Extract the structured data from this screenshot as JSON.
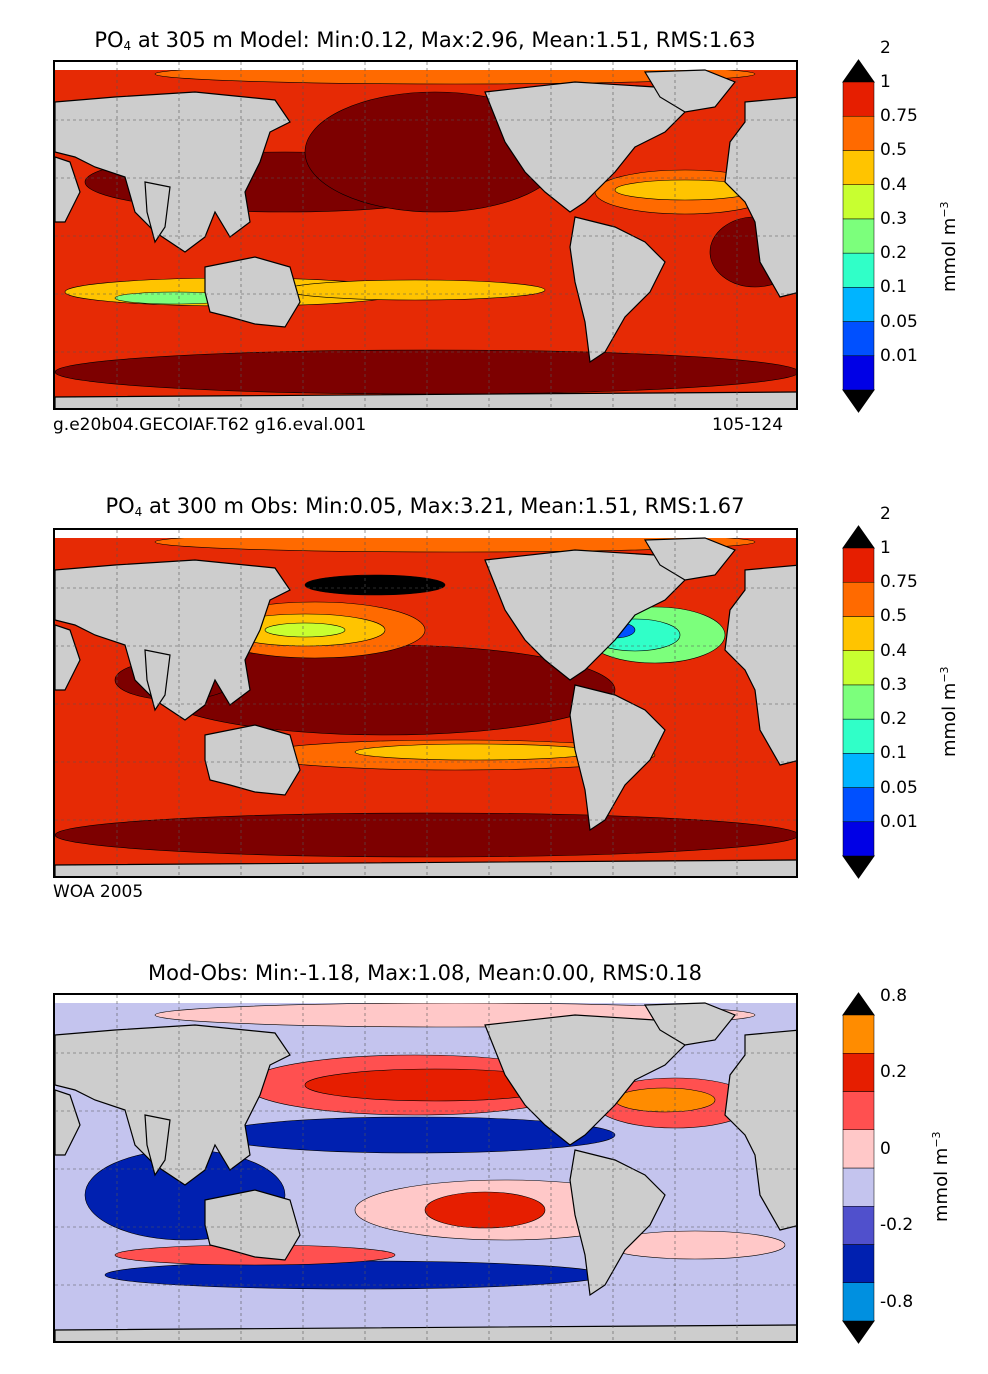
{
  "panels": [
    {
      "title": {
        "var": "PO",
        "sub": "4",
        "rest": " at 305 m Model: Min:0.12, Max:2.96, Mean:1.51, RMS:1.63"
      },
      "note_left": "g.e20b04.GECOIAF.T62 g16.eval.001",
      "note_right": "105-124",
      "ocean_color": "#e62a05",
      "colorbar": {
        "ticks": [
          "0.01",
          "0.05",
          "0.1",
          "0.2",
          "0.3",
          "0.4",
          "0.5",
          "0.75",
          "1",
          "2"
        ],
        "colors": [
          "#000080",
          "#0000e6",
          "#0050ff",
          "#00b4ff",
          "#30ffc8",
          "#7cff7c",
          "#c8ff30",
          "#ffc400",
          "#ff6a00",
          "#e61e00",
          "#7d0000"
        ],
        "unit": "mmol m",
        "unit_exp": "−3"
      },
      "map_stats": {
        "min": 0.12,
        "max": 2.96,
        "mean": 1.51,
        "rms": 1.63
      }
    },
    {
      "title": {
        "var": "PO",
        "sub": "4",
        "rest": " at 300 m Obs: Min:0.05, Max:3.21, Mean:1.51, RMS:1.67"
      },
      "note_left": "WOA 2005",
      "note_right": "",
      "ocean_color": "#e62a05",
      "colorbar": {
        "ticks": [
          "0.01",
          "0.05",
          "0.1",
          "0.2",
          "0.3",
          "0.4",
          "0.5",
          "0.75",
          "1",
          "2"
        ],
        "colors": [
          "#000080",
          "#0000e6",
          "#0050ff",
          "#00b4ff",
          "#30ffc8",
          "#7cff7c",
          "#c8ff30",
          "#ffc400",
          "#ff6a00",
          "#e61e00",
          "#7d0000"
        ],
        "unit": "mmol m",
        "unit_exp": "−3"
      },
      "map_stats": {
        "min": 0.05,
        "max": 3.21,
        "mean": 1.51,
        "rms": 1.67
      }
    },
    {
      "title": {
        "var": "",
        "sub": "",
        "rest": "Mod-Obs: Min:-1.18, Max:1.08, Mean:0.00, RMS:0.18"
      },
      "note_left": "",
      "note_right": "",
      "ocean_color": "#c4c4ee",
      "colorbar": {
        "ticks": [
          "-0.8",
          "",
          "-0.2",
          "",
          "0",
          "",
          "0.2",
          "",
          "0.8"
        ],
        "colors": [
          "#00ffff",
          "#0090e0",
          "#0020b0",
          "#5050cc",
          "#c4c4ee",
          "#ffc8c8",
          "#ff5050",
          "#e61e00",
          "#ff8c00",
          "#ffff00"
        ],
        "unit": "mmol m",
        "unit_exp": "−3"
      },
      "map_stats": {
        "min": -1.18,
        "max": 1.08,
        "mean": 0.0,
        "rms": 0.18
      }
    }
  ],
  "chart_data": [
    {
      "type": "heatmap",
      "title": "PO4 at 305 m Model",
      "stats": {
        "min": 0.12,
        "max": 2.96,
        "mean": 1.51,
        "rms": 1.63
      },
      "levels": [
        0.01,
        0.05,
        0.1,
        0.2,
        0.3,
        0.4,
        0.5,
        0.75,
        1,
        2
      ],
      "unit": "mmol m-3",
      "source": "g.e20b04.GECOIAF.T62 g16.eval.001",
      "years": "105-124"
    },
    {
      "type": "heatmap",
      "title": "PO4 at 300 m Obs",
      "stats": {
        "min": 0.05,
        "max": 3.21,
        "mean": 1.51,
        "rms": 1.67
      },
      "levels": [
        0.01,
        0.05,
        0.1,
        0.2,
        0.3,
        0.4,
        0.5,
        0.75,
        1,
        2
      ],
      "unit": "mmol m-3",
      "source": "WOA 2005"
    },
    {
      "type": "heatmap",
      "title": "Mod-Obs",
      "stats": {
        "min": -1.18,
        "max": 1.08,
        "mean": 0.0,
        "rms": 0.18
      },
      "levels": [
        -0.8,
        -0.5,
        -0.2,
        -0.1,
        0,
        0.1,
        0.2,
        0.5,
        0.8
      ],
      "unit": "mmol m-3"
    }
  ]
}
